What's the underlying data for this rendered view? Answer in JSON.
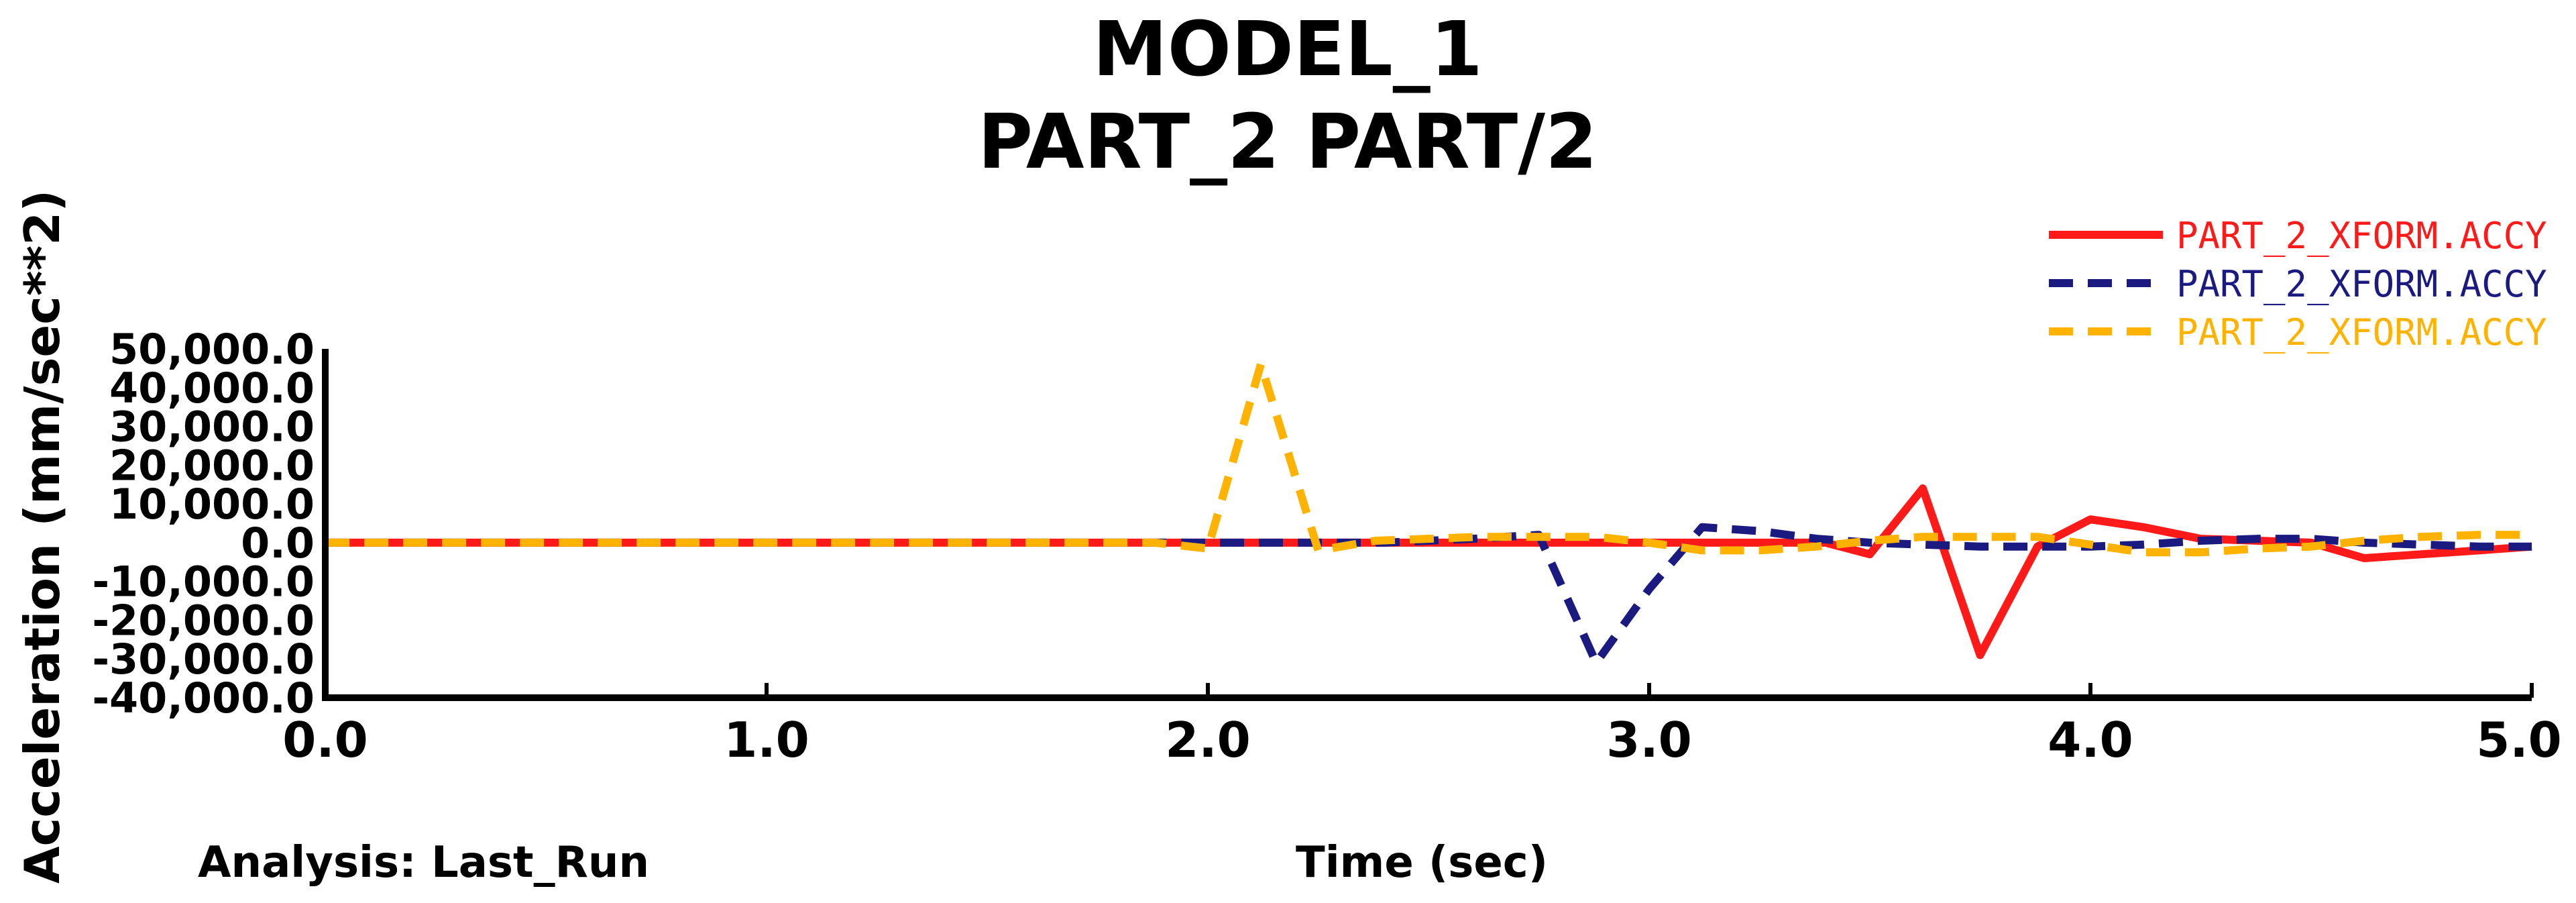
{
  "chart_data": {
    "type": "line",
    "title": "MODEL_1",
    "subtitle": "PART_2 PART/2",
    "xlabel": "Time (sec)",
    "ylabel": "Acceleration (mm/sec**2)",
    "analysis_label": "Analysis: Last_Run",
    "xlim": [
      0.0,
      5.0
    ],
    "ylim": [
      -40000.0,
      50000.0
    ],
    "x_ticks": [
      "0.0",
      "1.0",
      "2.0",
      "3.0",
      "4.0",
      "5.0"
    ],
    "x_tick_values": [
      0,
      1,
      2,
      3,
      4,
      5
    ],
    "y_ticks": [
      "50,000.0",
      "40,000.0",
      "30,000.0",
      "20,000.0",
      "10,000.0",
      "0.0",
      "-10,000.0",
      "-20,000.0",
      "-30,000.0",
      "-40,000.0"
    ],
    "y_tick_values": [
      50000,
      40000,
      30000,
      20000,
      10000,
      0,
      -10000,
      -20000,
      -30000,
      -40000
    ],
    "grid": false,
    "legend_position": "top-right",
    "series": [
      {
        "name": "PART_2_XFORM.ACCY",
        "color": "#ff1a1a",
        "style": "solid",
        "x": [
          0,
          0.5,
          1.0,
          1.5,
          2.0,
          2.5,
          3.0,
          3.25,
          3.4,
          3.5,
          3.62,
          3.75,
          3.88,
          4.0,
          4.12,
          4.25,
          4.38,
          4.5,
          4.62,
          4.75,
          4.88,
          5.0
        ],
        "y": [
          0,
          0,
          0,
          0,
          0,
          0,
          0,
          0,
          0,
          -3000,
          14000,
          -29000,
          -1000,
          6000,
          4000,
          1000,
          500,
          0,
          -4000,
          -3000,
          -2000,
          -1000
        ]
      },
      {
        "name": "PART_2_XFORM.ACCY",
        "color": "#1a1a80",
        "style": "dashed",
        "x": [
          0,
          0.5,
          1.0,
          1.5,
          2.0,
          2.4,
          2.6,
          2.75,
          2.88,
          3.0,
          3.12,
          3.25,
          3.38,
          3.5,
          3.62,
          3.75,
          3.88,
          4.0,
          4.12,
          4.25,
          4.38,
          4.5,
          4.62,
          4.75,
          4.88,
          5.0
        ],
        "y": [
          0,
          0,
          0,
          0,
          0,
          0,
          1000,
          2000,
          -31000,
          -12000,
          4000,
          3000,
          1000,
          0,
          -500,
          -1000,
          -1000,
          -1000,
          -500,
          500,
          1000,
          1000,
          0,
          -500,
          -1000,
          -1000
        ]
      },
      {
        "name": "PART_2_XFORM.ACCY",
        "color": "#ffb300",
        "style": "dashed",
        "x": [
          0,
          0.5,
          1.0,
          1.5,
          1.88,
          2.0,
          2.12,
          2.25,
          2.38,
          2.5,
          2.62,
          2.75,
          2.88,
          3.0,
          3.12,
          3.25,
          3.38,
          3.5,
          3.62,
          3.75,
          3.88,
          4.0,
          4.12,
          4.25,
          4.38,
          4.5,
          4.62,
          4.75,
          4.88,
          5.0
        ],
        "y": [
          0,
          0,
          0,
          0,
          0,
          -1500,
          46000,
          -2000,
          500,
          1000,
          1500,
          1500,
          1500,
          0,
          -2000,
          -2000,
          -1000,
          500,
          1500,
          1500,
          1500,
          -500,
          -2500,
          -2500,
          -1500,
          -1000,
          500,
          1500,
          2000,
          2000
        ]
      }
    ]
  }
}
